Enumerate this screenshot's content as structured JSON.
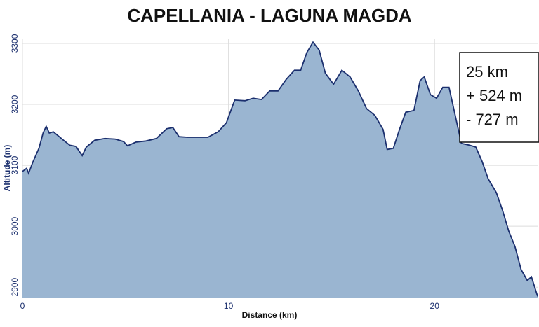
{
  "chart_data": {
    "type": "area",
    "title": "CAPELLANIA - LAGUNA MAGDA",
    "x_label": "Distance (km)",
    "y_label": "Altitude (m)",
    "x": [
      0,
      0.2,
      0.3,
      0.5,
      0.8,
      1.0,
      1.15,
      1.3,
      1.5,
      2.0,
      2.3,
      2.6,
      2.9,
      3.1,
      3.5,
      4.0,
      4.5,
      4.9,
      5.1,
      5.5,
      6.0,
      6.5,
      7.0,
      7.3,
      7.6,
      8.0,
      8.5,
      9.0,
      9.5,
      9.9,
      10.3,
      10.8,
      11.2,
      11.6,
      12.0,
      12.4,
      12.8,
      13.2,
      13.5,
      13.8,
      14.1,
      14.4,
      14.7,
      15.1,
      15.5,
      15.9,
      16.3,
      16.7,
      17.1,
      17.5,
      17.7,
      18.0,
      18.3,
      18.6,
      19.0,
      19.3,
      19.5,
      19.8,
      20.1,
      20.4,
      20.7,
      21.0,
      21.3,
      21.7,
      22.0,
      22.3,
      22.6,
      23.0,
      23.3,
      23.6,
      23.9,
      24.2,
      24.5,
      24.7,
      25.0
    ],
    "values": [
      3090,
      3095,
      3087,
      3105,
      3128,
      3153,
      3164,
      3153,
      3155,
      3141,
      3133,
      3131,
      3116,
      3130,
      3141,
      3144,
      3143,
      3139,
      3132,
      3138,
      3140,
      3144,
      3160,
      3162,
      3147,
      3146,
      3146,
      3146,
      3155,
      3170,
      3207,
      3206,
      3210,
      3208,
      3222,
      3222,
      3241,
      3256,
      3256,
      3285,
      3302,
      3289,
      3251,
      3233,
      3256,
      3245,
      3222,
      3193,
      3182,
      3159,
      3126,
      3128,
      3159,
      3187,
      3190,
      3239,
      3245,
      3216,
      3210,
      3228,
      3228,
      3182,
      3136,
      3133,
      3130,
      3107,
      3078,
      3055,
      3026,
      2992,
      2967,
      2929,
      2911,
      2917,
      2885
    ],
    "fill_color": "#9ab5d1",
    "line_color": "#1b2f6e",
    "xlim": [
      0,
      25
    ],
    "xticks": [
      0,
      10,
      20
    ],
    "ylim": [
      2883,
      3308
    ],
    "yticks": [
      2900,
      3000,
      3100,
      3200,
      3300
    ],
    "grid": true,
    "annotations": [
      "25 km",
      "+ 524 m",
      "- 727 m"
    ]
  }
}
